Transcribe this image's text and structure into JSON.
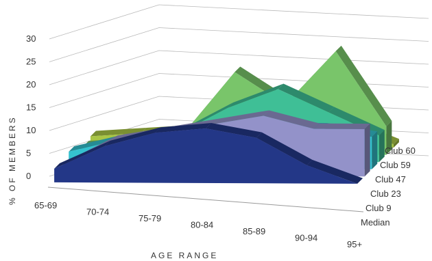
{
  "chart_data": {
    "type": "area",
    "style": "3d-stacked-ribbons",
    "title": "",
    "xlabel": "AGE RANGE",
    "ylabel": "% OF MEMBERS",
    "categories": [
      "65-69",
      "70-74",
      "75-79",
      "80-84",
      "85-89",
      "90-94",
      "95+"
    ],
    "yticks": [
      0,
      5,
      10,
      15,
      20,
      25,
      30
    ],
    "ylim": [
      0,
      30
    ],
    "grid": true,
    "series": [
      {
        "name": "Median",
        "color": "#233787",
        "values": [
          3,
          8,
          11,
          12,
          10,
          4,
          0
        ]
      },
      {
        "name": "Club 9",
        "color": "#9392c9",
        "values": [
          2,
          8,
          10,
          12,
          14,
          11,
          11
        ]
      },
      {
        "name": "Club 23",
        "color": "#35c1cf",
        "values": [
          4,
          7,
          9,
          9,
          10,
          10,
          8
        ]
      },
      {
        "name": "Club 47",
        "color": "#3fbf96",
        "values": [
          2,
          5,
          7,
          14,
          19,
          13,
          7
        ]
      },
      {
        "name": "Club 59",
        "color": "#79c56a",
        "values": [
          2,
          3,
          6,
          23,
          14,
          29,
          8
        ]
      },
      {
        "name": "Club 60",
        "color": "#a9c645",
        "values": [
          3,
          4,
          5,
          4,
          8,
          7,
          1
        ]
      }
    ]
  }
}
